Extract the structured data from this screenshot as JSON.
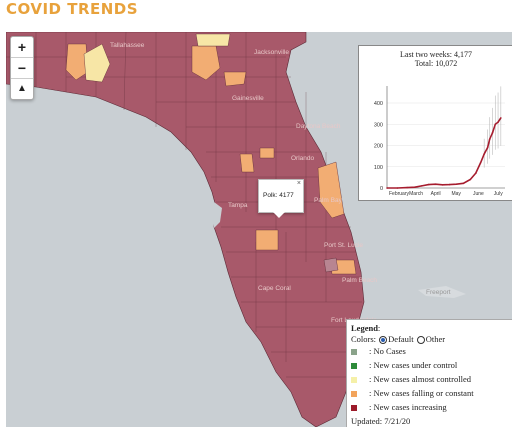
{
  "page": {
    "title": "COVID TRENDS"
  },
  "map": {
    "zoom_in": "+",
    "zoom_out": "−",
    "reset": "▲",
    "cities": [
      {
        "name": "Tallahassee"
      },
      {
        "name": "Jacksonville"
      },
      {
        "name": "Gainesville"
      },
      {
        "name": "Daytona Beach"
      },
      {
        "name": "Orlando"
      },
      {
        "name": "Tampa"
      },
      {
        "name": "Palm Bay"
      },
      {
        "name": "Port St. Lucie"
      },
      {
        "name": "Cape Coral"
      },
      {
        "name": "Palm Beach"
      },
      {
        "name": "Fort Lauderdale"
      },
      {
        "name": "Freeport"
      }
    ],
    "colors": {
      "water": "#c9cfd3",
      "default": "#a8596a",
      "increasing": "#a8596a",
      "falling": "#f2ad73",
      "almost": "#f7e6a6",
      "border": "#5c2a36"
    }
  },
  "popup": {
    "text": "Polk: 4177",
    "close": "×"
  },
  "chart_data": {
    "type": "line",
    "title": "Last two weeks: 4,177",
    "subtitle": "Total: 10,072",
    "x_ticks": [
      "February",
      "March",
      "April",
      "May",
      "June",
      "July"
    ],
    "y_ticks": [
      0,
      100,
      200,
      300,
      400
    ],
    "ylim": [
      0,
      480
    ],
    "x": [
      0,
      15,
      29,
      40,
      50,
      60,
      70,
      80,
      90,
      100,
      110,
      120,
      128,
      135,
      140,
      145,
      148,
      152,
      156,
      160,
      164
    ],
    "values": [
      0,
      0,
      2,
      4,
      10,
      16,
      18,
      15,
      16,
      18,
      22,
      40,
      70,
      120,
      160,
      190,
      230,
      260,
      300,
      310,
      330
    ],
    "grid": true,
    "color": "#a61c2e"
  },
  "legend": {
    "title": "Legend",
    "colors_label": "Colors:",
    "opt_default": "Default",
    "opt_other": "Other",
    "items": [
      {
        "label": ": No Cases",
        "color": "#8aa38a"
      },
      {
        "label": ": New cases under control",
        "color": "#2e8b3a"
      },
      {
        "label": ": New cases almost controlled",
        "color": "#f5f0a8"
      },
      {
        "label": ": New cases falling or constant",
        "color": "#f2a45c"
      },
      {
        "label": ": New cases increasing",
        "color": "#9c1b2a"
      }
    ],
    "updated": "Updated: 7/21/20"
  }
}
